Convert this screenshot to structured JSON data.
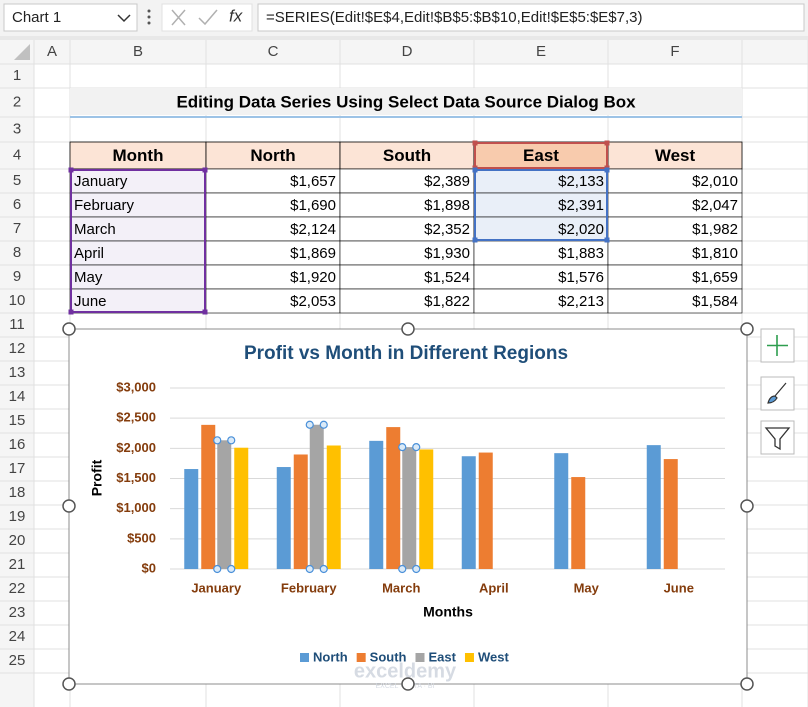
{
  "formula_bar": {
    "name_box": "Chart 1",
    "fx_label": "fx",
    "formula": "=SERIES(Edit!$E$4,Edit!$B$5:$B$10,Edit!$E$5:$E$7,3)"
  },
  "column_headers": [
    "A",
    "B",
    "C",
    "D",
    "E",
    "F"
  ],
  "row_headers": [
    "1",
    "2",
    "3",
    "4",
    "5",
    "6",
    "7",
    "8",
    "9",
    "10",
    "11",
    "12",
    "13",
    "14",
    "15",
    "16",
    "17",
    "18",
    "19",
    "20",
    "21",
    "22",
    "23",
    "24",
    "25"
  ],
  "sheet_title": "Editing Data Series Using Select Data Source Dialog Box",
  "table": {
    "header": [
      "Month",
      "North",
      "South",
      "East",
      "West"
    ],
    "rows": [
      [
        "January",
        "$1,657",
        "$2,389",
        "$2,133",
        "$2,010"
      ],
      [
        "February",
        "$1,690",
        "$1,898",
        "$2,391",
        "$2,047"
      ],
      [
        "March",
        "$2,124",
        "$2,352",
        "$2,020",
        "$1,982"
      ],
      [
        "April",
        "$1,869",
        "$1,930",
        "$1,883",
        "$1,810"
      ],
      [
        "May",
        "$1,920",
        "$1,524",
        "$1,576",
        "$1,659"
      ],
      [
        "June",
        "$2,053",
        "$1,822",
        "$2,213",
        "$1,584"
      ]
    ]
  },
  "chart_data": {
    "type": "bar",
    "title": "Profit vs Month in Different Regions",
    "x_label": "Months",
    "y_label": "Profit",
    "categories": [
      "January",
      "February",
      "March",
      "April",
      "May",
      "June"
    ],
    "series": [
      {
        "name": "North",
        "color": "#5b9bd5",
        "values": [
          1657,
          1690,
          2124,
          1869,
          1920,
          2053
        ]
      },
      {
        "name": "South",
        "color": "#ed7d31",
        "values": [
          2389,
          1898,
          2352,
          1930,
          1524,
          1822
        ]
      },
      {
        "name": "East",
        "color": "#a5a5a5",
        "values": [
          2133,
          2391,
          2020,
          null,
          null,
          null
        ]
      },
      {
        "name": "West",
        "color": "#ffc000",
        "values": [
          2010,
          2047,
          1982,
          null,
          null,
          null
        ]
      }
    ],
    "ylim": [
      0,
      3000
    ],
    "yticks": [
      {
        "value": 0,
        "label": "$0"
      },
      {
        "value": 500,
        "label": "$500"
      },
      {
        "value": 1000,
        "label": "$1,000"
      },
      {
        "value": 1500,
        "label": "$1,500"
      },
      {
        "value": 2000,
        "label": "$2,000"
      },
      {
        "value": 2500,
        "label": "$2,500"
      },
      {
        "value": 3000,
        "label": "$3,000"
      }
    ],
    "grid": true,
    "legend": "bottom"
  },
  "watermark": {
    "name": "exceldemy",
    "tagline": "EXCEL · DATA · BI"
  }
}
